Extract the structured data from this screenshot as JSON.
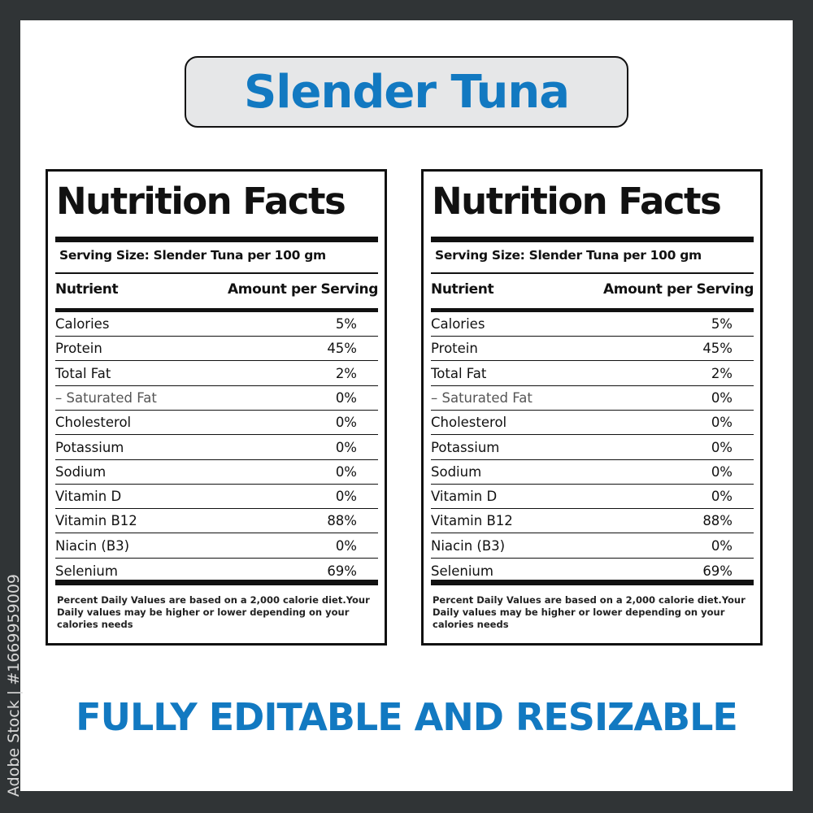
{
  "title": "Slender Tuna",
  "colors": {
    "accent": "#1279c1",
    "border": "#303436",
    "title_bg": "#e6e7e8"
  },
  "label": {
    "heading": "Nutrition Facts",
    "serving": "Serving Size: Slender Tuna per 100 gm",
    "col_nutrient": "Nutrient",
    "col_amount": "Amount per Serving",
    "rows": [
      {
        "name": "Calories",
        "value": "5%"
      },
      {
        "name": "Protein",
        "value": "45%"
      },
      {
        "name": "Total Fat",
        "value": "2%"
      },
      {
        "name": "– Saturated Fat",
        "value": "0%"
      },
      {
        "name": "Cholesterol",
        "value": "0%"
      },
      {
        "name": "Potassium",
        "value": "0%"
      },
      {
        "name": "Sodium",
        "value": "0%"
      },
      {
        "name": "Vitamin D",
        "value": "0%"
      },
      {
        "name": "Vitamin B12",
        "value": "88%"
      },
      {
        "name": "Niacin (B3)",
        "value": "0%"
      },
      {
        "name": "Selenium",
        "value": "69%"
      }
    ],
    "footnote": "Percent Daily Values are based on a 2,000 calorie diet.Your Daily values may be higher or lower depending on your calories needs"
  },
  "tagline": "FULLY EDITABLE AND RESIZABLE",
  "watermark": "Adobe Stock | #1669959009"
}
